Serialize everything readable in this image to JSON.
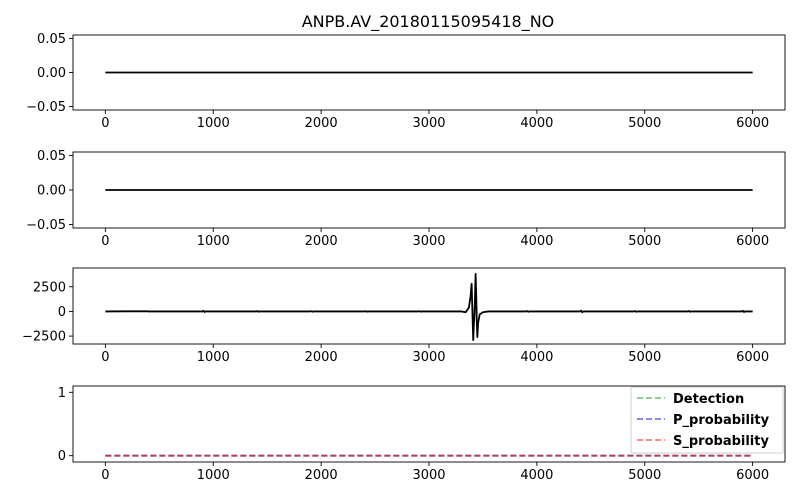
{
  "chart_data": [
    {
      "type": "line",
      "title": "ANPB.AV_20180115095418_NO",
      "xlim": [
        -300,
        6300
      ],
      "ylim": [
        -0.055,
        0.055
      ],
      "xticks": [
        0,
        1000,
        2000,
        3000,
        4000,
        5000,
        6000
      ],
      "yticks": [
        -0.05,
        0.0,
        0.05
      ],
      "xtick_labels": [
        "0",
        "1000",
        "2000",
        "3000",
        "4000",
        "5000",
        "6000"
      ],
      "ytick_labels": [
        "−0.05",
        "0.00",
        "0.05"
      ],
      "series": [
        {
          "color": "#000000",
          "points": [
            [
              0,
              0
            ],
            [
              6000,
              0
            ]
          ]
        }
      ]
    },
    {
      "type": "line",
      "xlim": [
        -300,
        6300
      ],
      "ylim": [
        -0.055,
        0.055
      ],
      "xticks": [
        0,
        1000,
        2000,
        3000,
        4000,
        5000,
        6000
      ],
      "yticks": [
        -0.05,
        0.0,
        0.05
      ],
      "xtick_labels": [
        "0",
        "1000",
        "2000",
        "3000",
        "4000",
        "5000",
        "6000"
      ],
      "ytick_labels": [
        "−0.05",
        "0.00",
        "0.05"
      ],
      "series": [
        {
          "color": "#000000",
          "points": [
            [
              0,
              0
            ],
            [
              6000,
              0
            ]
          ]
        }
      ]
    },
    {
      "type": "line",
      "xlim": [
        -300,
        6300
      ],
      "ylim": [
        -3300,
        4400
      ],
      "xticks": [
        0,
        1000,
        2000,
        3000,
        4000,
        5000,
        6000
      ],
      "yticks": [
        -2500,
        0,
        2500
      ],
      "xtick_labels": [
        "0",
        "1000",
        "2000",
        "3000",
        "4000",
        "5000",
        "6000"
      ],
      "ytick_labels": [
        "−2500",
        "0",
        "2500"
      ],
      "series": [
        {
          "color": "#000000",
          "points": [
            [
              0,
              0
            ],
            [
              400,
              20
            ],
            [
              410,
              -20
            ],
            [
              420,
              0
            ],
            [
              900,
              0
            ],
            [
              910,
              60
            ],
            [
              920,
              -60
            ],
            [
              930,
              0
            ],
            [
              1400,
              0
            ],
            [
              1410,
              40
            ],
            [
              1420,
              -40
            ],
            [
              1430,
              0
            ],
            [
              1900,
              0
            ],
            [
              1910,
              30
            ],
            [
              1920,
              -30
            ],
            [
              1930,
              0
            ],
            [
              2400,
              0
            ],
            [
              2410,
              30
            ],
            [
              2420,
              -30
            ],
            [
              2430,
              0
            ],
            [
              2900,
              0
            ],
            [
              2910,
              30
            ],
            [
              2920,
              -30
            ],
            [
              2930,
              0
            ],
            [
              3300,
              0
            ],
            [
              3340,
              -80
            ],
            [
              3370,
              400
            ],
            [
              3385,
              1500
            ],
            [
              3395,
              2800
            ],
            [
              3400,
              1000
            ],
            [
              3405,
              -1000
            ],
            [
              3410,
              -2900
            ],
            [
              3415,
              -1500
            ],
            [
              3420,
              -600
            ],
            [
              3425,
              800
            ],
            [
              3432,
              3800
            ],
            [
              3438,
              1500
            ],
            [
              3443,
              -1000
            ],
            [
              3448,
              -2600
            ],
            [
              3455,
              -1200
            ],
            [
              3470,
              -300
            ],
            [
              3500,
              -80
            ],
            [
              3550,
              0
            ],
            [
              3900,
              0
            ],
            [
              3910,
              40
            ],
            [
              3920,
              -40
            ],
            [
              3930,
              0
            ],
            [
              4400,
              0
            ],
            [
              4410,
              80
            ],
            [
              4420,
              -80
            ],
            [
              4430,
              0
            ],
            [
              4900,
              0
            ],
            [
              4910,
              40
            ],
            [
              4920,
              -40
            ],
            [
              4930,
              0
            ],
            [
              5400,
              0
            ],
            [
              5410,
              40
            ],
            [
              5420,
              -40
            ],
            [
              5430,
              0
            ],
            [
              5900,
              0
            ],
            [
              5910,
              60
            ],
            [
              5920,
              -60
            ],
            [
              5930,
              0
            ],
            [
              6000,
              0
            ]
          ]
        }
      ]
    },
    {
      "type": "line",
      "xlim": [
        -300,
        6300
      ],
      "ylim": [
        -0.1,
        1.1
      ],
      "xticks": [
        0,
        1000,
        2000,
        3000,
        4000,
        5000,
        6000
      ],
      "yticks": [
        0,
        1
      ],
      "xtick_labels": [
        "0",
        "1000",
        "2000",
        "3000",
        "4000",
        "5000",
        "6000"
      ],
      "ytick_labels": [
        "0",
        "1"
      ],
      "legend_placement": "top-right",
      "series": [
        {
          "name": "Detection",
          "color": "#2ca02c",
          "dashed": true,
          "points": [
            [
              0,
              0
            ],
            [
              6000,
              0
            ]
          ]
        },
        {
          "name": "P_probability",
          "color": "#1f1fdd",
          "dashed": true,
          "points": [
            [
              0,
              0
            ],
            [
              6000,
              0
            ]
          ]
        },
        {
          "name": "S_probability",
          "color": "#ff2020",
          "dashed": true,
          "points": [
            [
              0,
              0
            ],
            [
              6000,
              0
            ]
          ]
        }
      ]
    }
  ]
}
